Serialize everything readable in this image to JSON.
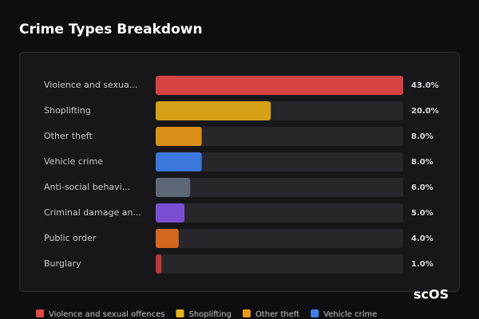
{
  "chart_data": {
    "type": "bar",
    "orientation": "horizontal",
    "title": "Crime Types Breakdown",
    "categories": [
      "Violence and sexua...",
      "Shoplifting",
      "Other theft",
      "Vehicle crime",
      "Anti-social behavi...",
      "Criminal damage an...",
      "Public order",
      "Burglary"
    ],
    "values": [
      43,
      20,
      8,
      8,
      6,
      5,
      4,
      1
    ],
    "value_labels": [
      "43.0%",
      "20.0%",
      "8.0%",
      "8.0%",
      "6.0%",
      "5.0%",
      "4.0%",
      "1.0%"
    ],
    "colors": [
      "#d64343",
      "#d4a017",
      "#d98e17",
      "#3b78dc",
      "#5d6776",
      "#7a4fd4",
      "#d5661d",
      "#c03636"
    ],
    "xlim": [
      0,
      43
    ],
    "legend": [
      {
        "name": "Violence and sexual offences",
        "color": "#e04646"
      },
      {
        "name": "Shoplifting",
        "color": "#e6b31e"
      },
      {
        "name": "Other theft",
        "color": "#e89a1f"
      },
      {
        "name": "Vehicle crime",
        "color": "#3d80e6"
      }
    ],
    "watermark": "scOS"
  }
}
